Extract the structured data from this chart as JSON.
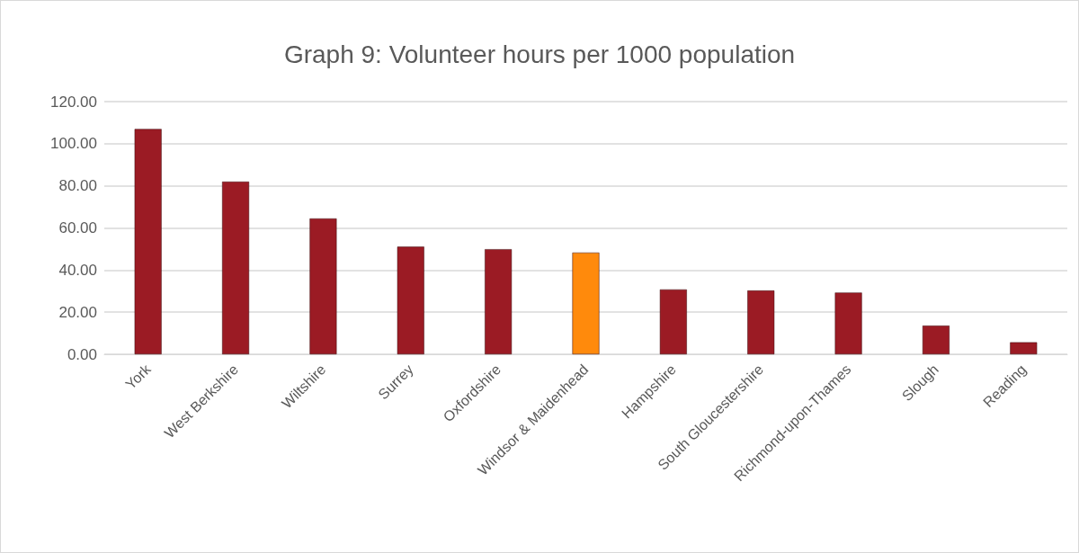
{
  "chart_data": {
    "type": "bar",
    "title": "Graph 9: Volunteer hours per 1000 population",
    "categories": [
      "York",
      "West Berkshire",
      "Wiltshire",
      "Surrey",
      "Oxfordshire",
      "Windsor & Maidenhead",
      "Hampshire",
      "South Gloucestershire",
      "Richmond-upon-Thames",
      "Slough",
      "Reading"
    ],
    "values": [
      107,
      82,
      64.5,
      51.1,
      49.9,
      48.3,
      30.8,
      30.3,
      29.3,
      13.6,
      5.7
    ],
    "colors": [
      "#9b1b24",
      "#9b1b24",
      "#9b1b24",
      "#9b1b24",
      "#9b1b24",
      "#ff8a0c",
      "#9b1b24",
      "#9b1b24",
      "#9b1b24",
      "#9b1b24",
      "#9b1b24"
    ],
    "ylim": [
      0,
      120
    ],
    "yticks": [
      {
        "value": 0,
        "label": "0.00"
      },
      {
        "value": 20,
        "label": "20.00"
      },
      {
        "value": 40,
        "label": "40.00"
      },
      {
        "value": 60,
        "label": "60.00"
      },
      {
        "value": 80,
        "label": "80.00"
      },
      {
        "value": 100,
        "label": "100.00"
      },
      {
        "value": 120,
        "label": "120.00"
      }
    ],
    "grid": "y"
  }
}
